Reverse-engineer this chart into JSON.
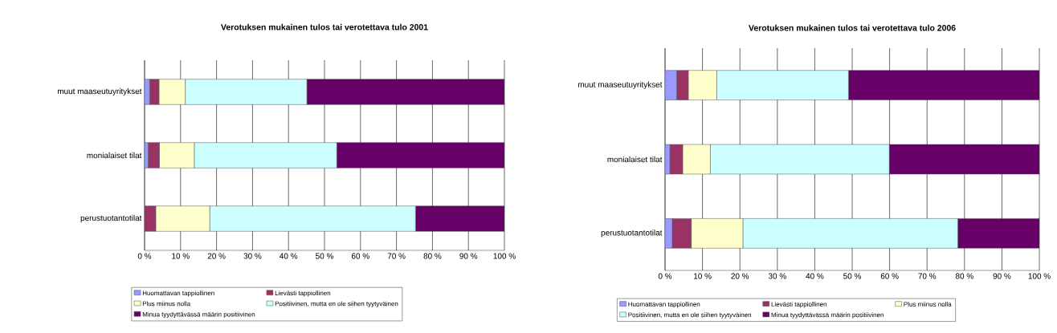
{
  "chart_data": [
    {
      "type": "bar",
      "orientation": "horizontal",
      "stacked": true,
      "title": "Verotuksen mukainen tulos tai verotettava tulo 2001",
      "categories": [
        "muut maaseutuyritykset",
        "monialaiset tilat",
        "perustuotantotilat"
      ],
      "series": [
        {
          "name": "Huomattavan tappiollinen",
          "color": "#9999ff",
          "values": [
            1.4,
            1.0,
            0
          ]
        },
        {
          "name": "Lievästi tappiollinen",
          "color": "#993366",
          "values": [
            2.6,
            3.1,
            3.1
          ]
        },
        {
          "name": "Plus miinus nolla",
          "color": "#ffffcc",
          "values": [
            7.3,
            9.7,
            15.0
          ]
        },
        {
          "name": "Positiivinen, mutta en ole siihen tyytyväinen",
          "color": "#ccffff",
          "values": [
            33.8,
            39.6,
            57.2
          ]
        },
        {
          "name": "Minua tyydyttävässä määrin positiivinen",
          "color": "#660066",
          "values": [
            54.9,
            46.6,
            24.7
          ]
        }
      ],
      "xlim": [
        0,
        100
      ],
      "xticks": [
        {
          "value": 0,
          "label": "0 %"
        },
        {
          "value": 10,
          "label": "10 %"
        },
        {
          "value": 20,
          "label": "20 %"
        },
        {
          "value": 30,
          "label": "30 %"
        },
        {
          "value": 40,
          "label": "40 %"
        },
        {
          "value": 50,
          "label": "50 %"
        },
        {
          "value": 60,
          "label": "60 %"
        },
        {
          "value": 70,
          "label": "70 %"
        },
        {
          "value": 80,
          "label": "80 %"
        },
        {
          "value": 90,
          "label": "90 %"
        },
        {
          "value": 100,
          "label": "100 %"
        }
      ],
      "grid": "x",
      "legend": "bottom"
    },
    {
      "type": "bar",
      "orientation": "horizontal",
      "stacked": true,
      "title": "Verotuksen mukainen tulos tai verotettava tulo 2006",
      "categories": [
        "muut maaseutuyritykset",
        "monialaiset tilat",
        "perustuotantotilat"
      ],
      "series": [
        {
          "name": "Huomattavan tappiollinen",
          "color": "#9999ff",
          "values": [
            3.1,
            1.3,
            1.9
          ]
        },
        {
          "name": "Lievästi tappiollinen",
          "color": "#993366",
          "values": [
            3.1,
            3.4,
            5.1
          ]
        },
        {
          "name": "Plus miinus nolla",
          "color": "#ffffcc",
          "values": [
            7.6,
            7.4,
            13.8
          ]
        },
        {
          "name": "Positiivinen, mutta en ole siihen tyytyväinen",
          "color": "#ccffff",
          "values": [
            35.2,
            47.8,
            57.4
          ]
        },
        {
          "name": "Minua tyydyttävässä määrin positiivinen",
          "color": "#660066",
          "values": [
            51.1,
            40.2,
            21.8
          ]
        }
      ],
      "xlim": [
        0,
        100
      ],
      "xticks": [
        {
          "value": 0,
          "label": "0 %"
        },
        {
          "value": 10,
          "label": "10 %"
        },
        {
          "value": 20,
          "label": "20 %"
        },
        {
          "value": 30,
          "label": "30 %"
        },
        {
          "value": 40,
          "label": "40 %"
        },
        {
          "value": 50,
          "label": "50 %"
        },
        {
          "value": 60,
          "label": "60 %"
        },
        {
          "value": 70,
          "label": "70 %"
        },
        {
          "value": 80,
          "label": "80 %"
        },
        {
          "value": 90,
          "label": "90 %"
        },
        {
          "value": 100,
          "label": "100 %"
        }
      ],
      "grid": "x",
      "legend": "bottom"
    }
  ]
}
